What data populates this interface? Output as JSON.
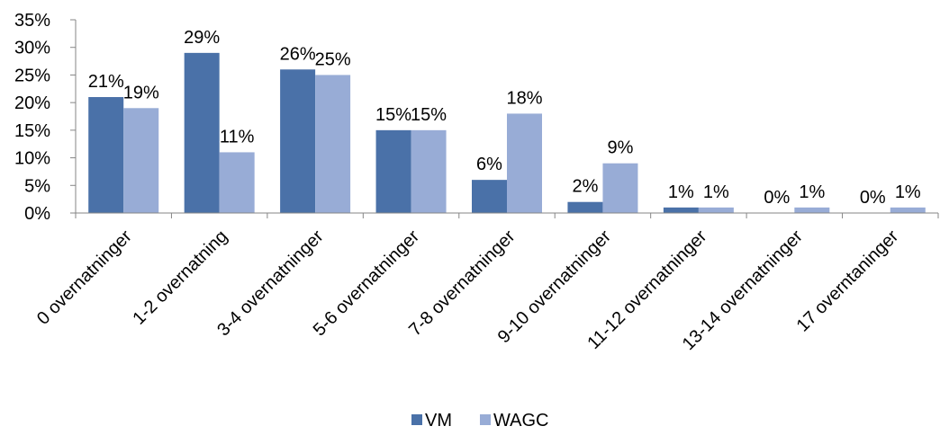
{
  "chart_data": {
    "type": "bar",
    "categories": [
      "0 overnatninger",
      "1-2 overnatning",
      "3-4 overnatninger",
      "5-6 overnatninger",
      "7-8 overnatninger",
      "9-10 overnatninger",
      "11-12 overnatninger",
      "13-14 overnatninger",
      "17 overntaninger"
    ],
    "series": [
      {
        "name": "VM",
        "color": "#4a71a8",
        "values": [
          21,
          29,
          26,
          15,
          6,
          2,
          1,
          0,
          0
        ],
        "labels": [
          "21%",
          "29%",
          "26%",
          "15%",
          "6%",
          "2%",
          "1%",
          "0%",
          "0%"
        ]
      },
      {
        "name": "WAGC",
        "color": "#98acd6",
        "values": [
          19,
          11,
          25,
          15,
          18,
          9,
          1,
          1,
          1
        ],
        "labels": [
          "19%",
          "11%",
          "25%",
          "15%",
          "18%",
          "9%",
          "1%",
          "1%",
          "1%"
        ]
      }
    ],
    "yticks": [
      0,
      5,
      10,
      15,
      20,
      25,
      30,
      35
    ],
    "ytick_labels": [
      "0%",
      "5%",
      "10%",
      "15%",
      "20%",
      "25%",
      "30%",
      "35%"
    ],
    "ylim": [
      0,
      35
    ],
    "grid": false,
    "legend": "bottom-center",
    "title": "",
    "xlabel": "",
    "ylabel": ""
  }
}
